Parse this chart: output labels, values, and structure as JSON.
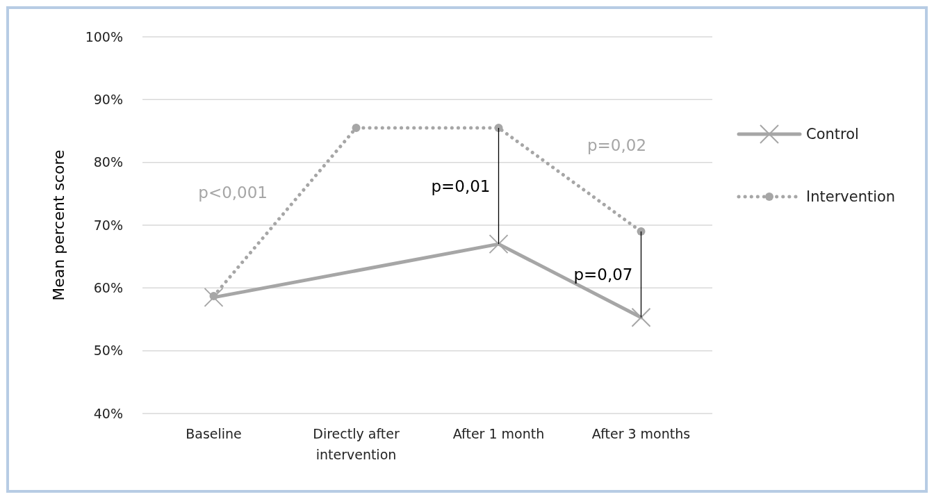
{
  "chart_data": {
    "type": "line",
    "ylabel": "Mean percent score",
    "categories": [
      "Baseline",
      "Directly after intervention",
      "After 1 month",
      "After 3 months"
    ],
    "series": [
      {
        "name": "Control",
        "color": "#a6a6a6",
        "values": [
          58.5,
          null,
          67,
          55.3
        ],
        "marker": "cross",
        "line_style": "solid"
      },
      {
        "name": "Intervention",
        "color": "#a6a6a6",
        "values": [
          58.7,
          85.5,
          85.5,
          69
        ],
        "marker": "circle",
        "line_style": "dotted"
      }
    ],
    "ylim": [
      40,
      100
    ],
    "yticks": [
      {
        "value": 40,
        "label": "40%"
      },
      {
        "value": 50,
        "label": "50%"
      },
      {
        "value": 60,
        "label": "60%"
      },
      {
        "value": 70,
        "label": "70%"
      },
      {
        "value": 80,
        "label": "80%"
      },
      {
        "value": 90,
        "label": "90%"
      },
      {
        "value": 100,
        "label": "100%"
      }
    ],
    "grid": "y",
    "legend": "right",
    "annotations": [
      "p<0,001",
      "p=0,01",
      "p=0,02",
      "p=0,07"
    ]
  }
}
